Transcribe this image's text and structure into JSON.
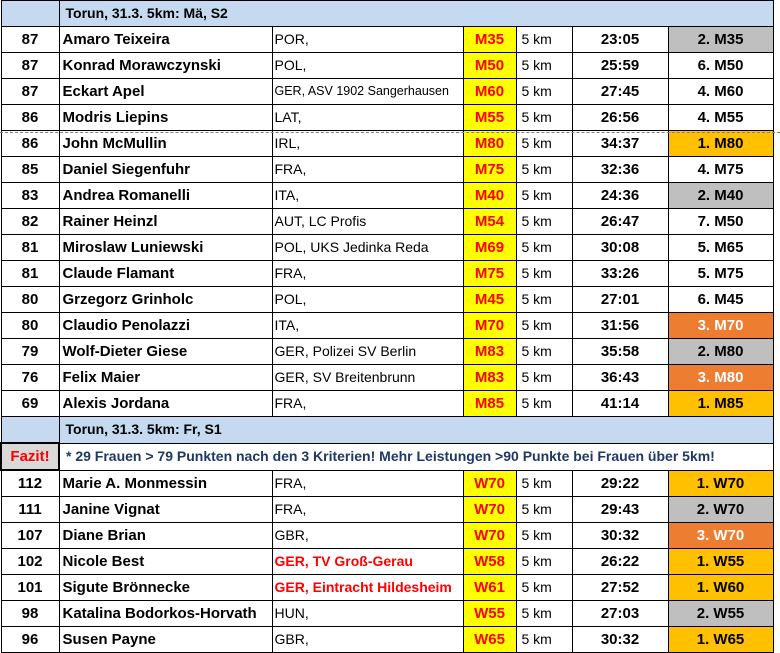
{
  "sections": {
    "men": {
      "title": "Torun, 31.3. 5km: Mä, S2"
    },
    "women": {
      "title": "Torun, 31.3. 5km: Fr, S1"
    }
  },
  "fazit": {
    "label": "Fazit!",
    "text": "* 29 Frauen > 79 Punkten nach den 3 Kriterien! Mehr Leistungen >90 Punkte bei Frauen über 5km!"
  },
  "colors": {
    "header_bg": "#c5d9f1",
    "category_bg": "#ffff00",
    "category_text": "#ff0000",
    "gold": "#ffc000",
    "silver": "#bfbfbf",
    "bronze": "#ed7d31"
  },
  "men_rows": [
    {
      "points": "87",
      "name": "Amaro Teixeira",
      "club": "POR,",
      "cat": "M35",
      "dist": "5 km",
      "time": "23:05",
      "place": "2. M35",
      "medal": "silver"
    },
    {
      "points": "87",
      "name": "Konrad Morawczynski",
      "club": "POL,",
      "cat": "M50",
      "dist": "5 km",
      "time": "25:59",
      "place": "6. M50",
      "medal": "none"
    },
    {
      "points": "87",
      "name": "Eckart Apel",
      "club": "GER, ASV 1902 Sangerhausen",
      "cat": "M60",
      "dist": "5 km",
      "time": "27:45",
      "place": "4. M60",
      "medal": "none"
    },
    {
      "points": "86",
      "name": "Modris Liepins",
      "club": "LAT,",
      "cat": "M55",
      "dist": "5 km",
      "time": "26:56",
      "place": "4. M55",
      "medal": "none"
    },
    {
      "points": "86",
      "name": "John McMullin",
      "club": "IRL,",
      "cat": "M80",
      "dist": "5 km",
      "time": "34:37",
      "place": "1. M80",
      "medal": "gold"
    },
    {
      "points": "85",
      "name": "Daniel Siegenfuhr",
      "club": "FRA,",
      "cat": "M75",
      "dist": "5 km",
      "time": "32:36",
      "place": "4. M75",
      "medal": "none"
    },
    {
      "points": "83",
      "name": "Andrea Romanelli",
      "club": "ITA,",
      "cat": "M40",
      "dist": "5 km",
      "time": "24:36",
      "place": "2. M40",
      "medal": "silver"
    },
    {
      "points": "82",
      "name": "Rainer Heinzl",
      "club": "AUT, LC Profis",
      "cat": "M54",
      "dist": "5 km",
      "time": "26:47",
      "place": "7. M50",
      "medal": "none"
    },
    {
      "points": "81",
      "name": "Miroslaw Luniewski",
      "club": "POL, UKS Jedinka Reda",
      "cat": "M69",
      "dist": "5 km",
      "time": "30:08",
      "place": "5. M65",
      "medal": "none"
    },
    {
      "points": "81",
      "name": "Claude Flamant",
      "club": "FRA,",
      "cat": "M75",
      "dist": "5 km",
      "time": "33:26",
      "place": "5. M75",
      "medal": "none"
    },
    {
      "points": "80",
      "name": "Grzegorz Grinholc",
      "club": "POL,",
      "cat": "M45",
      "dist": "5 km",
      "time": "27:01",
      "place": "6. M45",
      "medal": "none"
    },
    {
      "points": "80",
      "name": "Claudio Penolazzi",
      "club": "ITA,",
      "cat": "M70",
      "dist": "5 km",
      "time": "31:56",
      "place": "3. M70",
      "medal": "bronze"
    },
    {
      "points": "79",
      "name": "Wolf-Dieter Giese",
      "club": "GER, Polizei SV Berlin",
      "cat": "M83",
      "dist": "5 km",
      "time": "35:58",
      "place": "2. M80",
      "medal": "silver"
    },
    {
      "points": "76",
      "name": "Felix Maier",
      "club": "GER, SV Breitenbrunn",
      "cat": "M83",
      "dist": "5 km",
      "time": "36:43",
      "place": "3. M80",
      "medal": "bronze"
    },
    {
      "points": "69",
      "name": "Alexis Jordana",
      "club": "FRA,",
      "cat": "M85",
      "dist": "5 km",
      "time": "41:14",
      "place": "1. M85",
      "medal": "gold"
    }
  ],
  "women_rows": [
    {
      "points": "112",
      "name": "Marie A. Monmessin",
      "club": "FRA,",
      "cat": "W70",
      "dist": "5 km",
      "time": "29:22",
      "place": "1. W70",
      "medal": "gold"
    },
    {
      "points": "111",
      "name": "Janine Vignat",
      "club": "FRA,",
      "cat": "W70",
      "dist": "5 km",
      "time": "29:43",
      "place": "2. W70",
      "medal": "silver"
    },
    {
      "points": "107",
      "name": "Diane Brian",
      "club": "GBR,",
      "cat": "W70",
      "dist": "5 km",
      "time": "30:32",
      "place": "3. W70",
      "medal": "bronze"
    },
    {
      "points": "102",
      "name": "Nicole Best",
      "club": "GER, TV Groß-Gerau",
      "cat": "W58",
      "dist": "5 km",
      "time": "26:22",
      "place": "1. W55",
      "medal": "gold",
      "club_red": true
    },
    {
      "points": "101",
      "name": "Sigute Brönnecke",
      "club": "GER, Eintracht Hildesheim",
      "cat": "W61",
      "dist": "5 km",
      "time": "27:52",
      "place": "1. W60",
      "medal": "gold",
      "club_red": true
    },
    {
      "points": "98",
      "name": "Katalina Bodorkos-Horvath",
      "club": "HUN,",
      "cat": "W55",
      "dist": "5 km",
      "time": "27:03",
      "place": "2. W55",
      "medal": "silver"
    },
    {
      "points": "96",
      "name": "Susen Payne",
      "club": "GBR,",
      "cat": "W65",
      "dist": "5 km",
      "time": "30:32",
      "place": "1. W65",
      "medal": "gold"
    }
  ]
}
